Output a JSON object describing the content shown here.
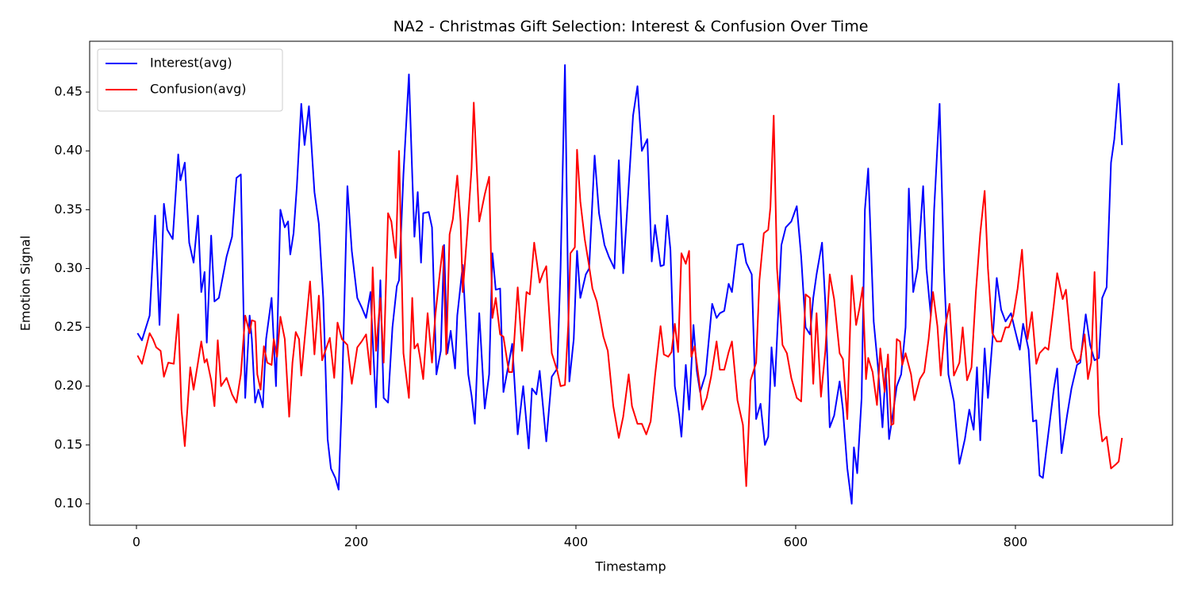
{
  "chart_data": {
    "type": "line",
    "title": "NA2 - Christmas Gift Selection: Interest & Confusion Over Time",
    "x_label": "Timestamp",
    "y_label": "Emotion Signal",
    "xlim": [
      -42.6,
      943
    ],
    "ylim": [
      0.0818,
      0.4932
    ],
    "xticks": [
      0,
      200,
      400,
      600,
      800
    ],
    "yticks": [
      {
        "value": 0.1,
        "label": "0.10"
      },
      0.15,
      {
        "value": 0.2,
        "label": "0.20"
      },
      0.25,
      {
        "value": 0.3,
        "label": "0.30"
      },
      0.35,
      {
        "value": 0.4,
        "label": "0.40"
      },
      0.45
    ],
    "grid": false,
    "legend": "upper left",
    "series": [
      {
        "name": "Interest(avg)",
        "color": "#0000ff",
        "x": [
          1,
          5,
          12,
          17,
          21,
          25,
          28,
          33,
          38,
          40,
          44,
          48,
          52,
          56,
          59,
          62,
          64,
          68,
          71,
          75,
          82,
          87,
          91,
          95,
          99,
          103,
          105,
          108,
          111,
          115,
          118,
          123,
          127,
          131,
          135,
          138,
          140,
          143,
          146,
          150,
          153,
          157,
          162,
          166,
          170,
          172,
          174,
          177,
          181,
          184,
          187,
          192,
          196,
          201,
          205,
          209,
          213,
          218,
          222,
          225,
          229,
          233,
          237,
          239,
          243,
          248,
          251,
          253,
          256,
          259,
          261,
          266,
          269,
          273,
          277,
          280,
          283,
          286,
          290,
          292,
          297,
          302,
          305,
          308,
          312,
          317,
          321,
          324,
          327,
          331,
          334,
          339,
          342,
          347,
          352,
          357,
          360,
          364,
          367,
          373,
          378,
          383,
          386,
          390,
          394,
          398,
          401,
          404,
          409,
          412,
          417,
          421,
          426,
          430,
          435,
          439,
          443,
          448,
          452,
          456,
          460,
          465,
          469,
          472,
          477,
          480,
          483,
          486,
          490,
          494,
          496,
          500,
          503,
          507,
          510,
          513,
          518,
          524,
          528,
          531,
          535,
          539,
          542,
          547,
          552,
          555,
          560,
          564,
          568,
          572,
          575,
          578,
          581,
          587,
          591,
          596,
          601,
          605,
          609,
          613,
          616,
          619,
          624,
          627,
          631,
          635,
          640,
          643,
          647,
          651,
          653,
          656,
          660,
          663,
          666,
          671,
          675,
          679,
          682,
          685,
          689,
          692,
          696,
          700,
          703,
          707,
          711,
          716,
          719,
          723,
          726,
          731,
          735,
          739,
          744,
          749,
          754,
          758,
          762,
          765,
          768,
          772,
          775,
          780,
          783,
          787,
          791,
          796,
          799,
          804,
          807,
          812,
          816,
          819,
          822,
          825,
          830,
          835,
          838,
          842,
          847,
          851,
          856,
          859,
          864,
          868,
          872,
          876,
          879,
          883,
          887,
          890,
          894,
          897
        ],
        "values": [
          0.245,
          0.239,
          0.26,
          0.345,
          0.252,
          0.355,
          0.333,
          0.325,
          0.397,
          0.375,
          0.39,
          0.322,
          0.305,
          0.345,
          0.28,
          0.297,
          0.237,
          0.328,
          0.272,
          0.275,
          0.31,
          0.327,
          0.377,
          0.38,
          0.19,
          0.26,
          0.24,
          0.186,
          0.197,
          0.182,
          0.24,
          0.275,
          0.2,
          0.35,
          0.335,
          0.34,
          0.312,
          0.33,
          0.37,
          0.44,
          0.405,
          0.438,
          0.365,
          0.338,
          0.275,
          0.218,
          0.155,
          0.13,
          0.122,
          0.112,
          0.19,
          0.37,
          0.315,
          0.275,
          0.267,
          0.258,
          0.28,
          0.182,
          0.29,
          0.19,
          0.186,
          0.25,
          0.285,
          0.29,
          0.38,
          0.465,
          0.38,
          0.327,
          0.365,
          0.305,
          0.347,
          0.348,
          0.335,
          0.21,
          0.23,
          0.32,
          0.228,
          0.247,
          0.215,
          0.26,
          0.303,
          0.21,
          0.192,
          0.168,
          0.262,
          0.181,
          0.21,
          0.313,
          0.282,
          0.283,
          0.195,
          0.22,
          0.236,
          0.159,
          0.2,
          0.147,
          0.198,
          0.193,
          0.213,
          0.153,
          0.208,
          0.215,
          0.3,
          0.473,
          0.204,
          0.24,
          0.315,
          0.275,
          0.295,
          0.3,
          0.396,
          0.347,
          0.32,
          0.31,
          0.3,
          0.392,
          0.296,
          0.37,
          0.43,
          0.455,
          0.4,
          0.41,
          0.306,
          0.337,
          0.302,
          0.303,
          0.345,
          0.316,
          0.2,
          0.175,
          0.157,
          0.218,
          0.18,
          0.252,
          0.213,
          0.195,
          0.21,
          0.27,
          0.258,
          0.262,
          0.264,
          0.287,
          0.28,
          0.32,
          0.321,
          0.305,
          0.295,
          0.172,
          0.185,
          0.15,
          0.157,
          0.233,
          0.2,
          0.32,
          0.335,
          0.34,
          0.353,
          0.31,
          0.25,
          0.244,
          0.275,
          0.295,
          0.322,
          0.27,
          0.165,
          0.175,
          0.204,
          0.18,
          0.13,
          0.1,
          0.148,
          0.126,
          0.19,
          0.35,
          0.385,
          0.255,
          0.215,
          0.165,
          0.215,
          0.155,
          0.18,
          0.2,
          0.21,
          0.25,
          0.368,
          0.28,
          0.3,
          0.37,
          0.3,
          0.26,
          0.35,
          0.44,
          0.3,
          0.21,
          0.187,
          0.134,
          0.155,
          0.18,
          0.163,
          0.216,
          0.154,
          0.232,
          0.19,
          0.25,
          0.292,
          0.265,
          0.255,
          0.262,
          0.25,
          0.231,
          0.253,
          0.231,
          0.17,
          0.171,
          0.124,
          0.122,
          0.16,
          0.198,
          0.215,
          0.143,
          0.175,
          0.198,
          0.218,
          0.22,
          0.261,
          0.235,
          0.222,
          0.224,
          0.275,
          0.284,
          0.39,
          0.41,
          0.457,
          0.405
        ]
      },
      {
        "name": "Confusion(avg)",
        "color": "#ff0000",
        "x": [
          1,
          5,
          12,
          15,
          18,
          22,
          25,
          29,
          34,
          38,
          41,
          44,
          49,
          52,
          56,
          59,
          62,
          64,
          68,
          71,
          74,
          77,
          82,
          87,
          91,
          95,
          99,
          103,
          105,
          108,
          110,
          113,
          116,
          119,
          123,
          125,
          128,
          131,
          135,
          139,
          142,
          145,
          148,
          150,
          155,
          158,
          162,
          166,
          169,
          173,
          176,
          180,
          183,
          187,
          192,
          196,
          201,
          205,
          209,
          213,
          215,
          218,
          222,
          225,
          229,
          232,
          236,
          239,
          243,
          248,
          251,
          253,
          256,
          258,
          261,
          265,
          269,
          272,
          276,
          279,
          282,
          285,
          288,
          292,
          295,
          297,
          301,
          305,
          307,
          312,
          317,
          321,
          324,
          327,
          331,
          334,
          339,
          342,
          347,
          351,
          355,
          358,
          362,
          367,
          370,
          373,
          378,
          383,
          386,
          390,
          393,
          395,
          399,
          401,
          404,
          408,
          412,
          415,
          419,
          425,
          429,
          434,
          439,
          443,
          448,
          451,
          456,
          460,
          464,
          468,
          472,
          477,
          480,
          484,
          487,
          490,
          493,
          496,
          500,
          503,
          505,
          508,
          512,
          515,
          519,
          523,
          528,
          531,
          535,
          539,
          542,
          547,
          552,
          555,
          559,
          564,
          567,
          571,
          575,
          577,
          580,
          583,
          588,
          592,
          596,
          601,
          605,
          609,
          613,
          616,
          619,
          623,
          627,
          631,
          635,
          640,
          643,
          647,
          651,
          655,
          658,
          661,
          664,
          666,
          670,
          674,
          677,
          681,
          684,
          687,
          689,
          692,
          695,
          697,
          700,
          705,
          708,
          713,
          717,
          721,
          725,
          729,
          732,
          736,
          740,
          744,
          749,
          752,
          756,
          760,
          764,
          768,
          772,
          775,
          779,
          783,
          787,
          791,
          794,
          798,
          802,
          806,
          811,
          815,
          819,
          822,
          827,
          830,
          835,
          838,
          843,
          846,
          851,
          856,
          859,
          863,
          866,
          869,
          872,
          876,
          879,
          883,
          887,
          892,
          894,
          897
        ],
        "values": [
          0.226,
          0.219,
          0.245,
          0.24,
          0.233,
          0.23,
          0.208,
          0.22,
          0.219,
          0.261,
          0.18,
          0.149,
          0.216,
          0.197,
          0.22,
          0.238,
          0.22,
          0.223,
          0.205,
          0.183,
          0.239,
          0.2,
          0.207,
          0.193,
          0.186,
          0.21,
          0.26,
          0.245,
          0.256,
          0.255,
          0.21,
          0.197,
          0.234,
          0.22,
          0.218,
          0.24,
          0.225,
          0.259,
          0.24,
          0.174,
          0.22,
          0.246,
          0.24,
          0.209,
          0.259,
          0.289,
          0.227,
          0.277,
          0.222,
          0.233,
          0.241,
          0.207,
          0.254,
          0.24,
          0.235,
          0.202,
          0.233,
          0.238,
          0.244,
          0.21,
          0.301,
          0.23,
          0.275,
          0.22,
          0.347,
          0.34,
          0.309,
          0.4,
          0.228,
          0.19,
          0.275,
          0.232,
          0.236,
          0.225,
          0.206,
          0.262,
          0.22,
          0.26,
          0.295,
          0.319,
          0.227,
          0.329,
          0.342,
          0.379,
          0.34,
          0.28,
          0.33,
          0.385,
          0.441,
          0.34,
          0.363,
          0.378,
          0.258,
          0.275,
          0.244,
          0.242,
          0.212,
          0.212,
          0.284,
          0.23,
          0.28,
          0.278,
          0.322,
          0.288,
          0.296,
          0.302,
          0.228,
          0.213,
          0.2,
          0.201,
          0.252,
          0.313,
          0.318,
          0.401,
          0.357,
          0.325,
          0.302,
          0.283,
          0.272,
          0.242,
          0.23,
          0.183,
          0.156,
          0.174,
          0.21,
          0.183,
          0.168,
          0.168,
          0.159,
          0.17,
          0.209,
          0.251,
          0.227,
          0.225,
          0.229,
          0.253,
          0.229,
          0.313,
          0.304,
          0.315,
          0.225,
          0.234,
          0.205,
          0.18,
          0.19,
          0.208,
          0.238,
          0.214,
          0.214,
          0.229,
          0.238,
          0.188,
          0.167,
          0.115,
          0.205,
          0.22,
          0.29,
          0.33,
          0.333,
          0.352,
          0.43,
          0.3,
          0.235,
          0.228,
          0.207,
          0.19,
          0.187,
          0.278,
          0.275,
          0.202,
          0.262,
          0.191,
          0.23,
          0.295,
          0.274,
          0.228,
          0.223,
          0.172,
          0.294,
          0.252,
          0.266,
          0.284,
          0.206,
          0.224,
          0.212,
          0.184,
          0.232,
          0.195,
          0.227,
          0.167,
          0.168,
          0.24,
          0.238,
          0.218,
          0.228,
          0.21,
          0.188,
          0.206,
          0.212,
          0.24,
          0.28,
          0.251,
          0.209,
          0.25,
          0.27,
          0.209,
          0.22,
          0.25,
          0.205,
          0.216,
          0.28,
          0.33,
          0.366,
          0.3,
          0.245,
          0.238,
          0.238,
          0.25,
          0.25,
          0.26,
          0.283,
          0.316,
          0.24,
          0.263,
          0.219,
          0.228,
          0.233,
          0.231,
          0.27,
          0.296,
          0.274,
          0.282,
          0.232,
          0.22,
          0.223,
          0.244,
          0.206,
          0.22,
          0.297,
          0.176,
          0.153,
          0.157,
          0.13,
          0.134,
          0.136,
          0.156
        ]
      }
    ]
  }
}
